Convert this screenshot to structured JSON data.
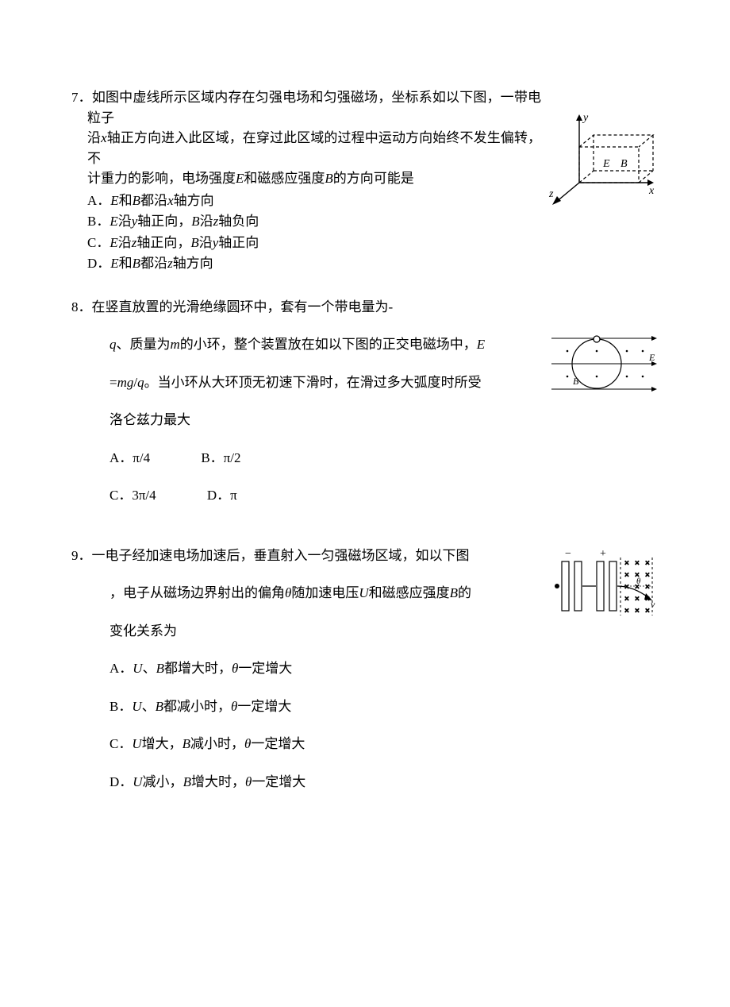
{
  "q7": {
    "number": "7．",
    "stem_l1": "如图中虚线所示区域内存在匀强电场和匀强磁场，坐标系如以下图，一带电粒子",
    "stem_l2": "沿<span class=\"italic\">x</span>轴正方向进入此区域，在穿过此区域的过程中运动方向始终不发生偏转，不",
    "stem_l3": "计重力的影响，电场强度<span class=\"italic\">E</span>和磁感应强度<span class=\"italic\">B</span>的方向可能是",
    "optA": "A．<span class=\"italic\">E</span>和<span class=\"italic\">B</span>都沿<span class=\"italic\">x</span>轴方向",
    "optB": "B．<span class=\"italic\">E</span>沿<span class=\"italic\">y</span>轴正向，<span class=\"italic\">B</span>沿<span class=\"italic\">z</span>轴负向",
    "optC": "C．<span class=\"italic\">E</span>沿<span class=\"italic\">z</span>轴正向，<span class=\"italic\">B</span>沿<span class=\"italic\">y</span>轴正向",
    "optD": "D．<span class=\"italic\">E</span>和<span class=\"italic\">B</span>都沿<span class=\"italic\">z</span>轴方向",
    "fig": {
      "labels": {
        "y": "y",
        "x": "x",
        "z": "z",
        "E": "E",
        "B": "B"
      },
      "stroke": "#000000",
      "font_family": "Times New Roman, serif",
      "font_size_pt": 12
    }
  },
  "q8": {
    "number": "8．",
    "stem_l1": "在竖直放置的光滑绝缘圆环中，套有一个带电量为-",
    "stem_l2": "<span class=\"italic\">q</span>、质量为<span class=\"italic\">m</span>的小环，整个装置放在如以下图的正交电磁场中，<span class=\"italic\">E</span>",
    "stem_l3": "=<span class=\"italic\">mg</span>/<span class=\"italic\">q</span>。当小环从大环顶无初速下滑时，在滑过多大弧度时所受",
    "stem_l4": "洛仑兹力最大",
    "optA": "A．π/4",
    "optB": "B．π/2",
    "optC": "C．3π/4",
    "optD": "D．π",
    "fig": {
      "labels": {
        "E": "E",
        "B": "B"
      },
      "stroke": "#000000",
      "font_family": "Times New Roman, serif",
      "font_size_pt": 11
    }
  },
  "q9": {
    "number": "9．",
    "stem_l1": "一电子经加速电场加速后，垂直射入一匀强磁场区域，如以下图",
    "stem_l2": "，电子从磁场边界射出的偏角<span class=\"italic\">θ</span>随加速电压<span class=\"italic\">U</span>和磁感应强度<span class=\"italic\">B</span>的",
    "stem_l3": "变化关系为",
    "optA": "A．<span class=\"italic\">U</span>、<span class=\"italic\">B</span>都增大时，<span class=\"italic\">θ</span>一定增大",
    "optB": "B．<span class=\"italic\">U</span>、<span class=\"italic\">B</span>都减小时，<span class=\"italic\">θ</span>一定增大",
    "optC": "C．<span class=\"italic\">U</span>增大，<span class=\"italic\">B</span>减小时，<span class=\"italic\">θ</span>一定增大",
    "optD": "D．<span class=\"italic\">U</span>减小，<span class=\"italic\">B</span>增大时，<span class=\"italic\">θ</span>一定增大",
    "fig": {
      "labels": {
        "minus": "−",
        "plus": "+",
        "v": "v",
        "theta": "θ"
      },
      "stroke": "#000000",
      "font_family": "Times New Roman, serif",
      "font_size_pt": 11
    }
  }
}
